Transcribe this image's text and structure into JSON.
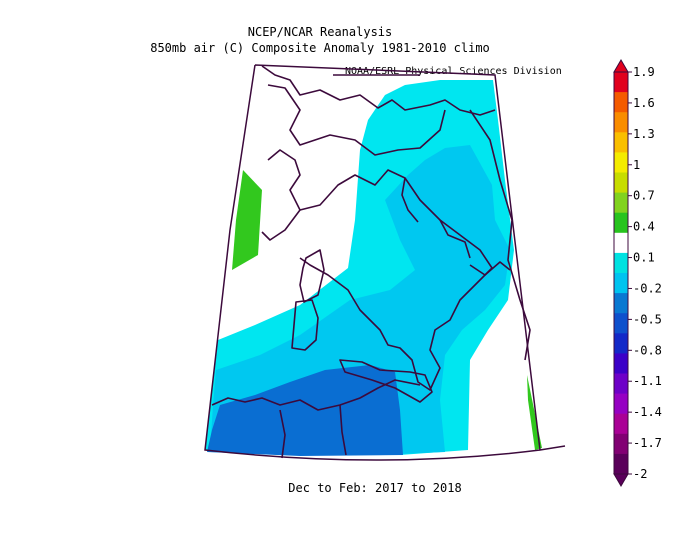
{
  "header": {
    "title": "NCEP/NCAR Reanalysis",
    "subtitle": "850mb air (C) Composite Anomaly 1981-2010 climo",
    "credit": "NOAA/ESRL Physical Sciences Division"
  },
  "footer": {
    "period": "Dec to Feb: 2017 to 2018"
  },
  "colorbar": {
    "labels": [
      "1.9",
      "1.6",
      "1.3",
      "1",
      "0.7",
      "0.4",
      "0.1",
      "-0.2",
      "-0.5",
      "-0.8",
      "-1.1",
      "-1.4",
      "-1.7",
      "-2"
    ],
    "colors": [
      "#e1001e",
      "#f55a00",
      "#fa8c00",
      "#fabe00",
      "#f5eb00",
      "#c8dc00",
      "#82d21e",
      "#28c31e",
      "#ffffff",
      "#00e1e1",
      "#00c3f0",
      "#0a78d2",
      "#0f50cd",
      "#1428c8",
      "#3c00c8",
      "#6e00c8",
      "#9600c3",
      "#aa0096",
      "#820073",
      "#5a005a"
    ]
  },
  "map": {
    "region": "Italy / Central Mediterranean",
    "legend_shading": {
      "green": "#32c81e",
      "cyan": "#00e6f0",
      "sky": "#00c8f0",
      "blue": "#0a6ed2"
    }
  }
}
